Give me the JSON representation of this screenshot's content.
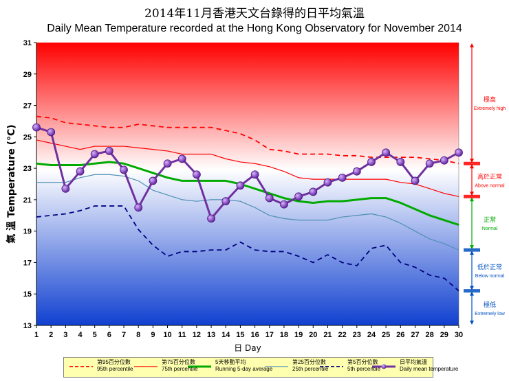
{
  "title_zh": "2014年11月香港天文台錄得的日平均氣溫",
  "title_en": "Daily Mean Temperature recorded at the Hong Kong Observatory for November 2014",
  "chart_data": {
    "type": "line",
    "x": [
      1,
      2,
      3,
      4,
      5,
      6,
      7,
      8,
      9,
      10,
      11,
      12,
      13,
      14,
      15,
      16,
      17,
      18,
      19,
      20,
      21,
      22,
      23,
      24,
      25,
      26,
      27,
      28,
      29,
      30
    ],
    "xlabel_zh": "日",
    "xlabel_en": "Day",
    "ylabel_zh": "氣 溫",
    "ylabel_en": "Temperature (°C)",
    "ylim": [
      13,
      31
    ],
    "yticks": [
      13,
      15,
      17,
      19,
      21,
      23,
      25,
      27,
      29,
      31
    ],
    "series": [
      {
        "key": "p95",
        "name_zh": "第95百分位數",
        "name_en": "95th percentile",
        "color": "#ff0000",
        "style": "dashed",
        "values": [
          26.3,
          26.2,
          25.9,
          25.8,
          25.7,
          25.6,
          25.6,
          25.8,
          25.7,
          25.6,
          25.6,
          25.6,
          25.6,
          25.4,
          25.2,
          24.8,
          24.2,
          24.1,
          23.9,
          23.9,
          23.9,
          23.8,
          23.8,
          23.7,
          23.7,
          23.7,
          23.7,
          23.6,
          23.5,
          23.3
        ]
      },
      {
        "key": "p75",
        "name_zh": "第75百分位數",
        "name_en": "75th percentile",
        "color": "#ff0000",
        "style": "solid-thin",
        "values": [
          24.8,
          24.6,
          24.4,
          24.2,
          24.4,
          24.4,
          24.4,
          24.3,
          24.2,
          24.1,
          23.9,
          23.9,
          23.9,
          23.6,
          23.4,
          23.3,
          23.1,
          22.8,
          22.4,
          22.3,
          22.3,
          22.3,
          22.3,
          22.3,
          22.3,
          22.1,
          22.0,
          21.7,
          21.4,
          21.2
        ]
      },
      {
        "key": "run5",
        "name_zh": "5天移動平均",
        "name_en": "Running 5-day average",
        "color": "#00aa00",
        "style": "solid-thick",
        "values": [
          23.3,
          23.2,
          23.2,
          23.2,
          23.3,
          23.4,
          23.3,
          23.0,
          22.7,
          22.4,
          22.2,
          22.2,
          22.2,
          22.2,
          22.0,
          21.7,
          21.4,
          21.1,
          20.9,
          20.8,
          20.9,
          20.9,
          21.0,
          21.1,
          21.1,
          20.8,
          20.4,
          20.0,
          19.7,
          19.4
        ]
      },
      {
        "key": "p25",
        "name_zh": "第25百分位數",
        "name_en": "25th percentile",
        "color": "#4d8fb3",
        "style": "solid-thin",
        "values": [
          22.1,
          22.1,
          22.1,
          22.4,
          22.6,
          22.6,
          22.5,
          22.2,
          21.6,
          21.3,
          21.0,
          20.9,
          21.0,
          21.0,
          20.9,
          20.5,
          20.0,
          19.8,
          19.7,
          19.7,
          19.7,
          19.9,
          20.0,
          20.1,
          19.9,
          19.5,
          19.0,
          18.5,
          18.2,
          17.8
        ]
      },
      {
        "key": "p5",
        "name_zh": "第5百分位數",
        "name_en": "5th percentile",
        "color": "#000080",
        "style": "dashed",
        "values": [
          19.9,
          20.0,
          20.1,
          20.3,
          20.6,
          20.6,
          20.6,
          19.1,
          18.1,
          17.4,
          17.7,
          17.7,
          17.8,
          17.8,
          18.3,
          17.8,
          17.7,
          17.7,
          17.4,
          17.0,
          17.5,
          17.0,
          16.8,
          17.9,
          18.1,
          17.0,
          16.7,
          16.2,
          16.0,
          15.2
        ]
      },
      {
        "key": "daily",
        "name_zh": "日平均氣溫",
        "name_en": "Daily mean temperature",
        "color": "#7030a0",
        "style": "markers",
        "values": [
          25.6,
          25.3,
          21.7,
          22.8,
          23.9,
          24.1,
          22.9,
          20.5,
          22.2,
          23.3,
          23.6,
          22.6,
          19.8,
          20.9,
          21.9,
          22.6,
          21.1,
          20.7,
          21.2,
          21.5,
          22.1,
          22.4,
          22.8,
          23.4,
          24.0,
          23.4,
          22.2,
          23.3,
          23.5,
          24.0
        ]
      }
    ],
    "bands": [
      {
        "zh": "極高",
        "en": "Extremely high",
        "color": "#ff0000",
        "from": 23.3,
        "to": 31
      },
      {
        "zh": "高於正常",
        "en": "Above normal",
        "color": "#ff0000",
        "from": 21.2,
        "to": 23.3
      },
      {
        "zh": "正常",
        "en": "Normal",
        "color": "#00aa00",
        "from": 17.8,
        "to": 21.2
      },
      {
        "zh": "低於正常",
        "en": "Below normal",
        "color": "#0050c0",
        "from": 15.2,
        "to": 17.8
      },
      {
        "zh": "極低",
        "en": "Extremely low",
        "color": "#0050c0",
        "from": 13,
        "to": 15.2
      }
    ]
  }
}
